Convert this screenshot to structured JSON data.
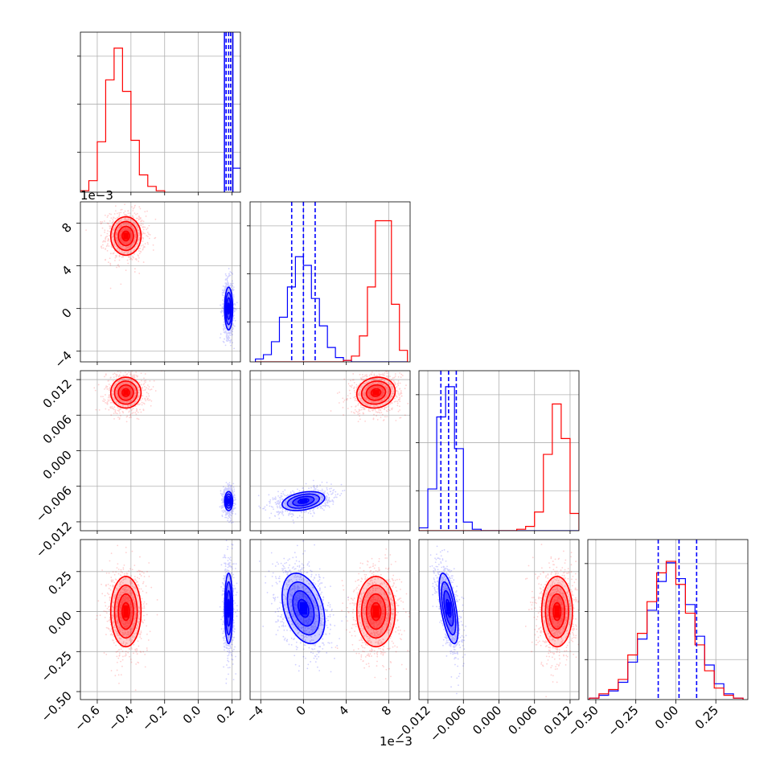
{
  "chart_data": {
    "type": "corner",
    "title": "",
    "parameters": [
      {
        "range": [
          -0.7,
          0.25
        ],
        "ticks": [
          -0.6,
          -0.4,
          -0.2,
          0.0,
          0.2
        ],
        "tick_labels": [
          "−0.6",
          "−0.4",
          "−0.2",
          "0.0",
          "0.2"
        ],
        "offset_label": ""
      },
      {
        "range": [
          -5.0,
          10.0
        ],
        "ticks": [
          -4,
          0,
          4,
          8
        ],
        "tick_labels": [
          "−4",
          "0",
          "4",
          "8"
        ],
        "offset_label": "1e−3"
      },
      {
        "range": [
          -0.0135,
          0.0135
        ],
        "ticks": [
          -0.012,
          -0.006,
          0.0,
          0.006,
          0.012
        ],
        "tick_labels": [
          "−0.012",
          "−0.006",
          "0.000",
          "0.006",
          "0.012"
        ],
        "offset_label": ""
      },
      {
        "range": [
          -0.55,
          0.45
        ],
        "ticks": [
          -0.5,
          -0.25,
          0.0,
          0.25
        ],
        "tick_labels": [
          "−0.50",
          "−0.25",
          "0.00",
          "0.25"
        ],
        "offset_label": ""
      }
    ],
    "grid": true,
    "series": [
      {
        "color": "#ff0000",
        "mean": [
          -0.43,
          6.8,
          0.0098,
          0.0
        ],
        "std": [
          0.045,
          0.9,
          0.0013,
          0.11
        ],
        "correlations": {
          "0-1": 0.0,
          "0-2": 0.0,
          "0-3": 0.0,
          "1-2": 0.1,
          "1-3": 0.0,
          "2-3": 0.0
        }
      },
      {
        "color": "#0000ff",
        "mean": [
          0.18,
          0.0,
          -0.0085,
          0.02
        ],
        "std": [
          0.012,
          1.0,
          0.0008,
          0.11
        ],
        "correlations": {
          "0-1": 0.0,
          "0-2": 0.0,
          "0-3": 0.0,
          "1-2": 0.35,
          "1-3": -0.35,
          "2-3": -0.6
        }
      }
    ],
    "quantile_lines": {
      "color": "#0000ff",
      "style": "dashed",
      "values": [
        [
          0.165,
          0.18,
          0.192
        ],
        [
          -1.1,
          0.0,
          1.1
        ],
        [
          -0.0098,
          -0.0085,
          -0.0072
        ],
        [
          -0.11,
          0.02,
          0.13
        ]
      ]
    },
    "histograms": [
      {
        "bin_edges": [
          -0.7,
          -0.65,
          -0.6,
          -0.55,
          -0.5,
          -0.45,
          -0.4,
          -0.35,
          -0.3,
          -0.25,
          -0.2
        ],
        "series": [
          {
            "color": "#ff0000",
            "values": [
              0.01,
              0.08,
              0.35,
              0.78,
              1.0,
              0.7,
              0.36,
              0.12,
              0.04,
              0.01
            ]
          }
        ],
        "blue_values": [
          0.06
        ],
        "blue_bin_edges": [
          0.245,
          0.25
        ]
      },
      {
        "bin_edges": [
          -4.5,
          -3.75,
          -3.0,
          -2.25,
          -1.5,
          -0.75,
          0.0,
          0.75,
          1.5,
          2.25,
          3.0,
          3.75,
          4.5,
          5.25,
          6.0,
          6.75,
          7.5,
          8.25,
          9.0,
          9.75
        ],
        "series": [
          {
            "color": "#0000ff",
            "values": [
              0.02,
              0.05,
              0.14,
              0.31,
              0.52,
              0.73,
              0.67,
              0.44,
              0.25,
              0.1,
              0.03,
              0.01,
              0.0,
              0.0,
              0.0,
              0.0,
              0.0,
              0.0,
              0.0
            ]
          },
          {
            "color": "#ff0000",
            "values": [
              0.0,
              0.0,
              0.0,
              0.0,
              0.0,
              0.0,
              0.0,
              0.0,
              0.0,
              0.0,
              0.0,
              0.01,
              0.04,
              0.18,
              0.52,
              0.98,
              0.98,
              0.4,
              0.08
            ]
          }
        ]
      },
      {
        "bin_edges": [
          -0.0135,
          -0.012,
          -0.0105,
          -0.009,
          -0.0075,
          -0.006,
          -0.0045,
          -0.003,
          -0.0015,
          0.0,
          0.0015,
          0.003,
          0.0045,
          0.006,
          0.0075,
          0.009,
          0.0105,
          0.012,
          0.0135
        ],
        "series": [
          {
            "color": "#0000ff",
            "values": [
              0.02,
              0.29,
              0.79,
              1.0,
              0.57,
              0.06,
              0.01,
              0.0,
              0.0,
              0.0,
              0.0,
              0.0,
              0.0,
              0.0,
              0.0,
              0.0,
              0.0,
              0.0
            ]
          },
          {
            "color": "#ff0000",
            "values": [
              0.0,
              0.0,
              0.0,
              0.0,
              0.0,
              0.0,
              0.0,
              0.0,
              0.0,
              0.0,
              0.0,
              0.01,
              0.03,
              0.13,
              0.53,
              0.88,
              0.64,
              0.12
            ]
          }
        ]
      },
      {
        "bin_edges": [
          -0.6,
          -0.54,
          -0.48,
          -0.42,
          -0.36,
          -0.3,
          -0.24,
          -0.18,
          -0.12,
          -0.06,
          0.0,
          0.06,
          0.12,
          0.18,
          0.24,
          0.3,
          0.36,
          0.42
        ],
        "series": [
          {
            "color": "#0000ff",
            "values": [
              0.0,
              0.01,
              0.03,
              0.06,
              0.12,
              0.26,
              0.42,
              0.62,
              0.82,
              0.95,
              0.84,
              0.66,
              0.44,
              0.24,
              0.11,
              0.04,
              0.01
            ]
          },
          {
            "color": "#ff0000",
            "values": [
              0.0,
              0.01,
              0.04,
              0.07,
              0.14,
              0.31,
              0.46,
              0.68,
              0.88,
              0.96,
              0.8,
              0.6,
              0.38,
              0.2,
              0.08,
              0.03,
              0.01
            ]
          }
        ]
      }
    ]
  }
}
